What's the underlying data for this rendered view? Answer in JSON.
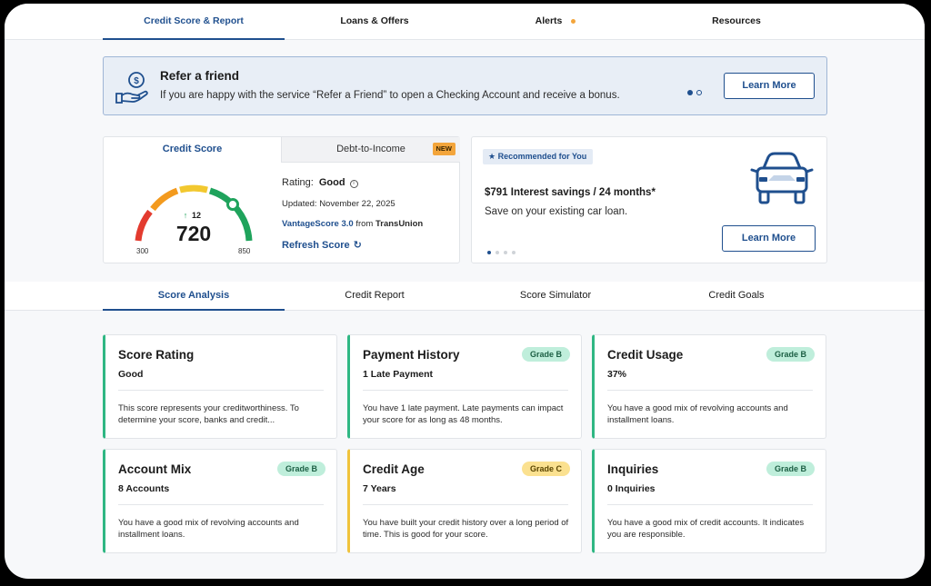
{
  "top_nav": {
    "tabs": [
      {
        "label": "Credit Score & Report",
        "active": true
      },
      {
        "label": "Loans & Offers",
        "active": false
      },
      {
        "label": "Alerts",
        "active": false,
        "indicator": true
      },
      {
        "label": "Resources",
        "active": false
      }
    ]
  },
  "banner": {
    "icon": "dollar-hand-icon",
    "title": "Refer a friend",
    "text": "If you are happy with the service “Refer a Friend” to open a Checking Account and receive a bonus.",
    "cta": "Learn More"
  },
  "score_card": {
    "tab_score": "Credit Score",
    "tab_dti": "Debt-to-Income",
    "new_badge": "NEW",
    "score": "720",
    "change": "12",
    "min": "300",
    "max": "850",
    "score_value": 720,
    "rating_label": "Rating:",
    "rating_value": "Good",
    "updated": "Updated: November 22, 2025",
    "model_link": "VantageScore 3.0",
    "model_from": "from",
    "bureau": "TransUnion",
    "refresh": "Refresh Score"
  },
  "recommended": {
    "badge": "Recommended for You",
    "title": "$791 Interest savings / 24 months*",
    "subtitle": "Save on your existing car loan.",
    "cta": "Learn More",
    "icon": "car-icon"
  },
  "sub_nav": {
    "tabs": [
      {
        "label": "Score Analysis",
        "active": true
      },
      {
        "label": "Credit Report",
        "active": false
      },
      {
        "label": "Score Simulator",
        "active": false
      },
      {
        "label": "Credit Goals",
        "active": false
      }
    ]
  },
  "factors": [
    {
      "title": "Score Rating",
      "value": "Good",
      "grade": "",
      "desc": "This score represents your creditworthiness. To determine your score, banks and credit..."
    },
    {
      "title": "Payment History",
      "value": "1 Late Payment",
      "grade": "Grade B",
      "desc": "You have 1 late payment. Late payments can impact your score for as long as 48 months."
    },
    {
      "title": "Credit Usage",
      "value": "37%",
      "grade": "Grade B",
      "desc": "You have a good mix of revolving accounts and installment loans."
    },
    {
      "title": "Account Mix",
      "value": "8 Accounts",
      "grade": "Grade B",
      "desc": "You have a good mix of revolving accounts and installment loans."
    },
    {
      "title": "Credit Age",
      "value": "7 Years",
      "grade": "Grade C",
      "desc": "You have built your credit history over a long period of time. This is good for your score."
    },
    {
      "title": "Inquiries",
      "value": "0 Inquiries",
      "grade": "Grade B",
      "desc": "You have a good mix of credit accounts. It indicates you are responsible."
    }
  ],
  "colors": {
    "brand": "#1f4f8e",
    "grade_b": "#bfeedb",
    "grade_c": "#fbe190",
    "green": "#2fb783",
    "yellow": "#f0c33c",
    "alert_dot": "#f3a53b"
  }
}
